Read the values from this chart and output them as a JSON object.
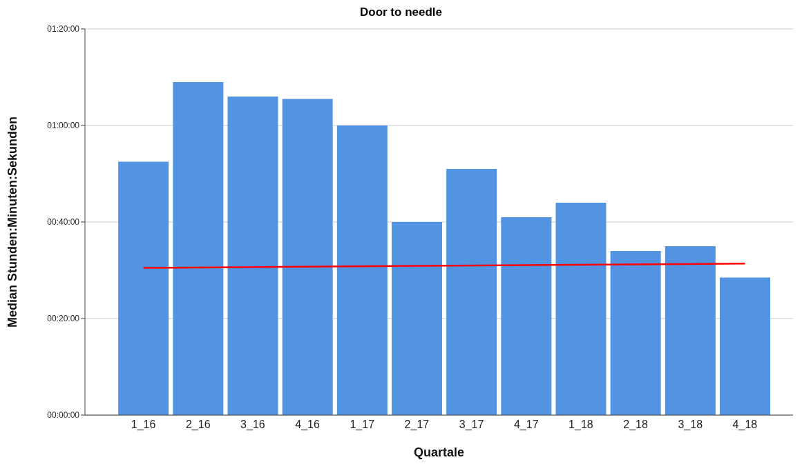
{
  "chart_data": {
    "type": "bar",
    "title": "Door to needle",
    "xlabel": "Quartale",
    "ylabel": "Median Stunden:Minuten:Sekunden",
    "categories": [
      "1_16",
      "2_16",
      "3_16",
      "4_16",
      "1_17",
      "2_17",
      "3_17",
      "4_17",
      "1_18",
      "2_18",
      "3_18",
      "4_18"
    ],
    "series": [
      {
        "color": "#5294e2",
        "values": [
          52.5,
          69,
          66,
          65.5,
          60,
          40,
          51,
          41,
          44,
          34,
          35,
          28.5
        ]
      },
      {
        "type": "line",
        "color": "#ff0000",
        "x": [
          "1_16",
          "4_18"
        ],
        "values": [
          30.5,
          31.4
        ]
      }
    ],
    "ylim": [
      0,
      80
    ],
    "yticks": [
      {
        "value": 0,
        "label": "00:00:00"
      },
      {
        "value": 20,
        "label": "00:20:00"
      },
      {
        "value": 40,
        "label": "00:40:00"
      },
      {
        "value": 60,
        "label": "01:00:00"
      },
      {
        "value": 80,
        "label": "01:20:00"
      }
    ],
    "grid": "y",
    "legend": false,
    "marker": "none",
    "line_style": "solid"
  }
}
